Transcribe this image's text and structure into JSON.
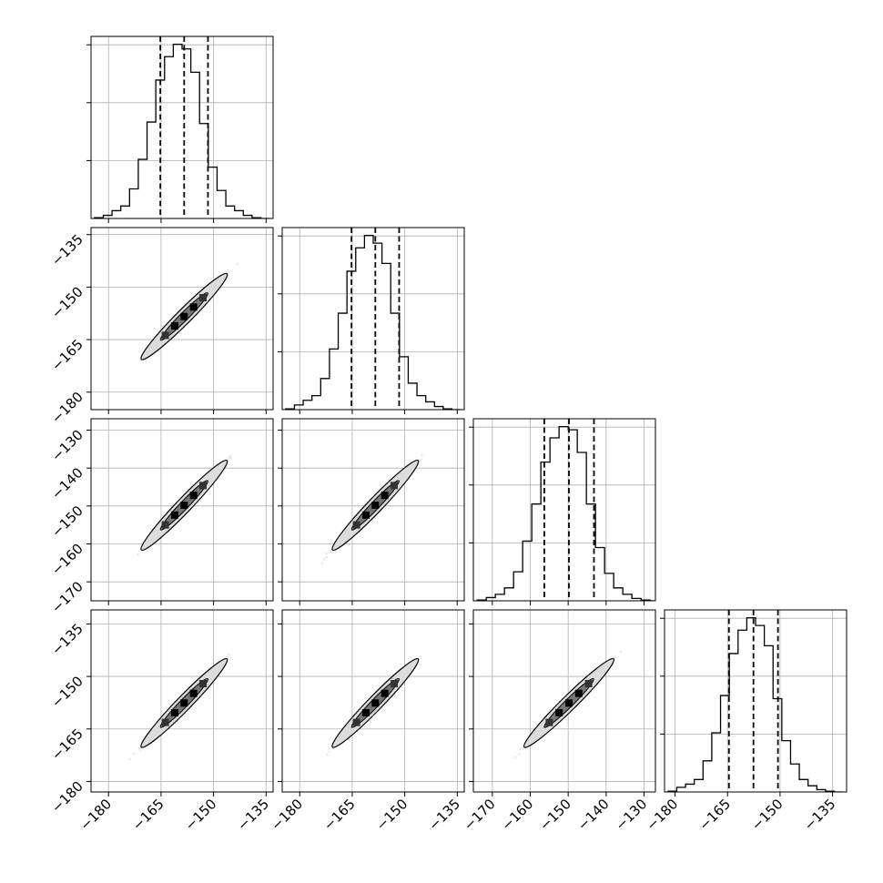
{
  "chart_data": {
    "type": "corner",
    "n_params": 4,
    "grid": true,
    "param_ranges": [
      [
        -185,
        -133
      ],
      [
        -185,
        -133
      ],
      [
        -175,
        -127
      ],
      [
        -183,
        -131
      ]
    ],
    "tick_values": [
      [
        -180,
        -165,
        -150,
        -135
      ],
      [
        -180,
        -165,
        -150,
        -135
      ],
      [
        -170,
        -160,
        -150,
        -140,
        -130
      ],
      [
        -180,
        -165,
        -150,
        -135
      ]
    ],
    "tick_labels": [
      [
        "−180",
        "−165",
        "−150",
        "−135"
      ],
      [
        "−180",
        "−165",
        "−150",
        "−135"
      ],
      [
        "−170",
        "−160",
        "−150",
        "−140",
        "−130"
      ],
      [
        "−180",
        "−165",
        "−150",
        "−135"
      ]
    ],
    "quantiles": [
      [
        -165.2,
        -158.4,
        -151.6
      ],
      [
        -165.2,
        -158.4,
        -151.6
      ],
      [
        -156.3,
        -149.8,
        -143.2
      ],
      [
        -164.6,
        -157.6,
        -150.6
      ]
    ],
    "histograms": [
      {
        "bin_edges": [
          -184.0,
          -181.5,
          -179.0,
          -176.5,
          -174.0,
          -171.5,
          -169.0,
          -166.5,
          -164.0,
          -161.5,
          -159.0,
          -156.5,
          -154.0,
          -151.5,
          -149.0,
          -146.5,
          -144.0,
          -141.5,
          -139.0,
          -136.5,
          -134.0
        ],
        "counts": [
          0.5,
          2,
          5,
          8,
          19,
          38,
          62,
          89,
          104,
          112,
          109,
          94,
          61,
          33,
          18,
          8,
          5,
          2,
          0.5,
          0
        ]
      },
      {
        "bin_edges": [
          -184.0,
          -181.5,
          -179.0,
          -176.5,
          -174.0,
          -171.5,
          -169.0,
          -166.5,
          -164.0,
          -161.5,
          -159.0,
          -156.5,
          -154.0,
          -151.5,
          -149.0,
          -146.5,
          -144.0,
          -141.5,
          -139.0,
          -136.5,
          -134.0
        ],
        "counts": [
          0.5,
          3,
          6,
          9,
          20,
          39,
          62,
          89,
          104,
          112,
          107,
          94,
          62,
          34,
          17,
          9,
          5,
          2,
          0.5,
          0
        ]
      },
      {
        "bin_edges": [
          -174.0,
          -171.6,
          -169.2,
          -166.8,
          -164.4,
          -162.0,
          -159.6,
          -157.2,
          -154.8,
          -152.4,
          -150.0,
          -147.6,
          -145.2,
          -142.8,
          -140.4,
          -138.0,
          -135.6,
          -133.2,
          -130.8,
          -128.4,
          -126.0
        ],
        "counts": [
          0.5,
          2,
          4,
          8,
          18,
          37,
          60,
          86,
          101,
          108,
          106,
          92,
          60,
          33,
          17,
          8,
          4,
          1.5,
          0.5,
          0
        ]
      },
      {
        "bin_edges": [
          -182.0,
          -179.5,
          -177.0,
          -174.5,
          -172.0,
          -169.5,
          -167.0,
          -164.5,
          -162.0,
          -159.5,
          -157.0,
          -154.5,
          -152.0,
          -149.5,
          -147.0,
          -144.5,
          -142.0,
          -139.5,
          -137.0,
          -134.5,
          -132.0
        ],
        "counts": [
          0.5,
          3,
          5,
          8,
          20,
          38,
          62,
          89,
          104,
          112,
          107,
          94,
          60,
          33,
          18,
          8,
          4,
          1.5,
          0.5,
          0
        ]
      }
    ]
  }
}
